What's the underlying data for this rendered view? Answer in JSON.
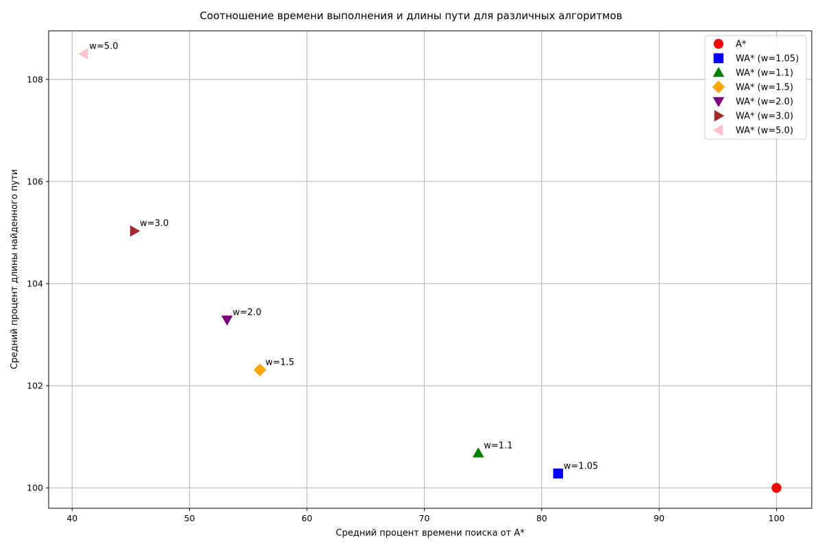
{
  "chart_data": {
    "type": "scatter",
    "title": "Соотношение времени выполнения и длины пути для различных алгоритмов",
    "xlabel": "Средний процент времени поиска от A*",
    "ylabel": "Средний процент длины найденного пути",
    "xlim": [
      38,
      103
    ],
    "ylim": [
      99.6,
      108.95
    ],
    "xticks": [
      40,
      50,
      60,
      70,
      80,
      90,
      100
    ],
    "yticks": [
      100,
      102,
      104,
      106,
      108
    ],
    "grid": true,
    "legend_position": "top-right",
    "series": [
      {
        "name": "A*",
        "marker": "circle",
        "color": "#ff0000",
        "x": 100.0,
        "y": 100.0,
        "annotation": ""
      },
      {
        "name": "WA* (w=1.05)",
        "marker": "square",
        "color": "#0000ff",
        "x": 81.4,
        "y": 100.28,
        "annotation": "w=1.05"
      },
      {
        "name": "WA* (w=1.1)",
        "marker": "triangle-up",
        "color": "#008000",
        "x": 74.6,
        "y": 100.68,
        "annotation": "w=1.1"
      },
      {
        "name": "WA* (w=1.5)",
        "marker": "diamond",
        "color": "#ffa500",
        "x": 56.0,
        "y": 102.31,
        "annotation": "w=1.5"
      },
      {
        "name": "WA* (w=2.0)",
        "marker": "triangle-down",
        "color": "#800080",
        "x": 53.2,
        "y": 103.29,
        "annotation": "w=2.0"
      },
      {
        "name": "WA* (w=3.0)",
        "marker": "triangle-right",
        "color": "#a52a2a",
        "x": 45.3,
        "y": 105.03,
        "annotation": "w=3.0"
      },
      {
        "name": "WA* (w=5.0)",
        "marker": "triangle-left",
        "color": "#ffc0cb",
        "x": 41.0,
        "y": 108.5,
        "annotation": "w=5.0"
      }
    ]
  }
}
